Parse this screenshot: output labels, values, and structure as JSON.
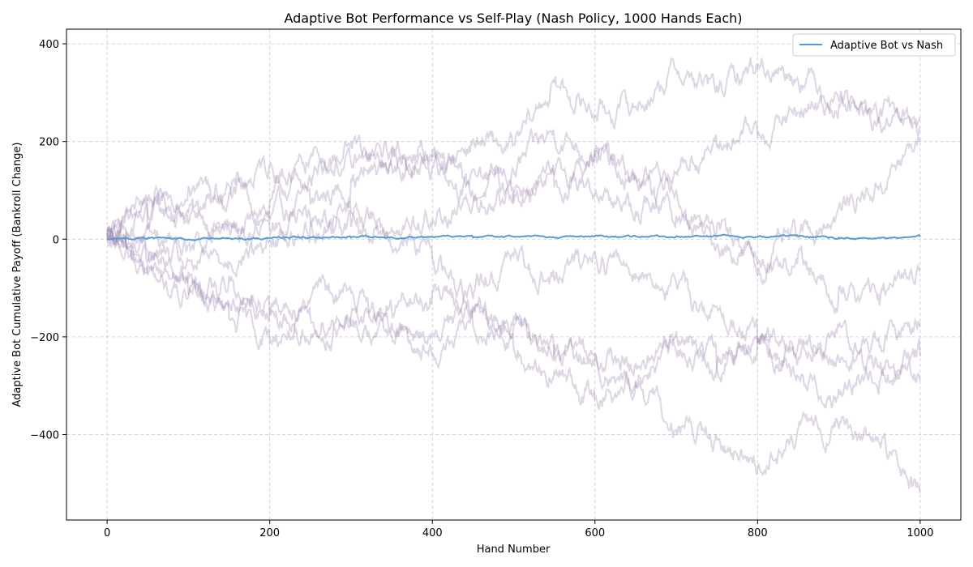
{
  "chart_data": {
    "type": "line",
    "title": "Adaptive Bot Performance vs Self-Play (Nash Policy, 1000 Hands Each)",
    "xlabel": "Hand Number",
    "ylabel": "Adaptive Bot Cumulative Payoff (Bankroll Change)",
    "xlim": [
      -50,
      1050
    ],
    "ylim": [
      -575,
      430
    ],
    "xticks": [
      0,
      200,
      400,
      600,
      800,
      1000
    ],
    "xtick_labels": [
      "0",
      "200",
      "400",
      "600",
      "800",
      "1000"
    ],
    "yticks": [
      -400,
      -200,
      0,
      200,
      400
    ],
    "ytick_labels": [
      "−400",
      "−200",
      "0",
      "200",
      "400"
    ],
    "grid": true,
    "legend_position": "top-right",
    "colors": {
      "main_series": "#5b9bd5",
      "background_runs": "#8a6a9e",
      "grid": "#c8c8c8"
    },
    "series": [
      {
        "name": "Adaptive Bot vs Nash",
        "x": [
          0,
          50,
          100,
          150,
          200,
          250,
          300,
          350,
          400,
          450,
          500,
          550,
          600,
          650,
          700,
          750,
          800,
          850,
          900,
          950,
          1000
        ],
        "y": [
          0,
          2,
          -1,
          1,
          2,
          3,
          4,
          5,
          5,
          4,
          5,
          4,
          6,
          6,
          5,
          7,
          5,
          6,
          3,
          2,
          5
        ]
      }
    ],
    "background_runs": [
      {
        "x": [
          0,
          50,
          100,
          150,
          200,
          250,
          300,
          350,
          400,
          450,
          500,
          550,
          600,
          650,
          700,
          750,
          800,
          850,
          900,
          950,
          1000
        ],
        "y": [
          0,
          90,
          60,
          20,
          40,
          80,
          110,
          160,
          180,
          90,
          140,
          220,
          180,
          120,
          40,
          -10,
          -40,
          0,
          60,
          110,
          200
        ]
      },
      {
        "x": [
          0,
          50,
          100,
          150,
          200,
          250,
          300,
          350,
          400,
          450,
          500,
          550,
          600,
          650,
          700,
          750,
          800,
          850,
          900,
          950,
          1000
        ],
        "y": [
          0,
          60,
          40,
          100,
          60,
          170,
          150,
          180,
          140,
          200,
          180,
          320,
          260,
          270,
          350,
          300,
          360,
          340,
          300,
          250,
          250
        ]
      },
      {
        "x": [
          0,
          50,
          100,
          150,
          200,
          250,
          300,
          350,
          400,
          450,
          500,
          550,
          600,
          650,
          700,
          750,
          800,
          850,
          900,
          950,
          1000
        ],
        "y": [
          0,
          30,
          120,
          90,
          150,
          120,
          200,
          150,
          160,
          130,
          100,
          120,
          170,
          130,
          150,
          190,
          220,
          260,
          280,
          230,
          220
        ]
      },
      {
        "x": [
          0,
          50,
          100,
          150,
          200,
          250,
          300,
          350,
          400,
          450,
          500,
          550,
          600,
          650,
          700,
          750,
          800,
          850,
          900,
          950,
          1000
        ],
        "y": [
          0,
          -40,
          -100,
          -160,
          -200,
          -170,
          -150,
          -140,
          -120,
          -110,
          -40,
          -80,
          -30,
          -60,
          -100,
          -150,
          -200,
          -230,
          -250,
          -210,
          -170
        ]
      },
      {
        "x": [
          0,
          50,
          100,
          150,
          200,
          250,
          300,
          350,
          400,
          450,
          500,
          550,
          600,
          650,
          700,
          750,
          800,
          850,
          900,
          950,
          1000
        ],
        "y": [
          0,
          -20,
          -60,
          -40,
          -10,
          20,
          40,
          0,
          -30,
          -130,
          -210,
          -280,
          -320,
          -280,
          -230,
          -250,
          -200,
          -280,
          -320,
          -260,
          -290
        ]
      },
      {
        "x": [
          0,
          50,
          100,
          150,
          200,
          250,
          300,
          350,
          400,
          450,
          500,
          550,
          600,
          650,
          700,
          750,
          800,
          850,
          900,
          950,
          1000
        ],
        "y": [
          0,
          -50,
          -80,
          -120,
          -140,
          -110,
          -120,
          -180,
          -230,
          -180,
          -160,
          -230,
          -260,
          -300,
          -380,
          -420,
          -460,
          -400,
          -380,
          -420,
          -520
        ]
      },
      {
        "x": [
          0,
          50,
          100,
          150,
          200,
          250,
          300,
          350,
          400,
          450,
          500,
          550,
          600,
          650,
          700,
          750,
          800,
          850,
          900,
          950,
          1000
        ],
        "y": [
          0,
          -70,
          -130,
          -90,
          -160,
          -200,
          -180,
          -200,
          -190,
          -150,
          -190,
          -220,
          -240,
          -260,
          -200,
          -260,
          -200,
          -240,
          -180,
          -300,
          -240
        ]
      },
      {
        "x": [
          0,
          50,
          100,
          150,
          200,
          250,
          300,
          350,
          400,
          450,
          500,
          550,
          600,
          650,
          700,
          750,
          800,
          850,
          900,
          950,
          1000
        ],
        "y": [
          0,
          20,
          -20,
          10,
          20,
          40,
          60,
          30,
          40,
          60,
          80,
          120,
          100,
          60,
          100,
          20,
          -60,
          -40,
          -110,
          -120,
          -60
        ]
      }
    ]
  }
}
